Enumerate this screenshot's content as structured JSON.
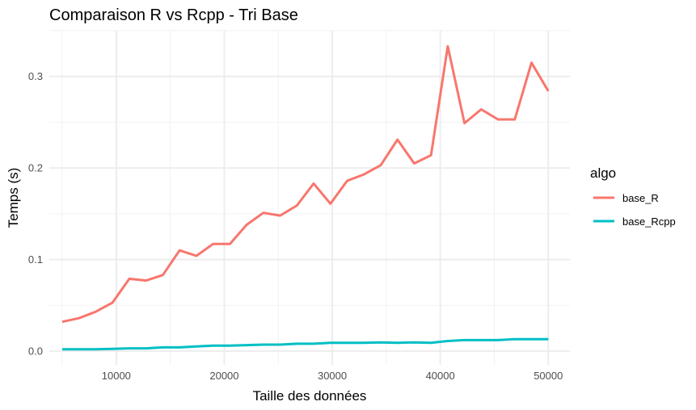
{
  "chart_data": {
    "type": "line",
    "title": "Comparaison R vs Rcpp - Tri Base",
    "xlabel": "Taille des données",
    "ylabel": "Temps (s)",
    "xlim": [
      3800,
      52000
    ],
    "ylim": [
      -0.015,
      0.35
    ],
    "xticks": [
      10000,
      20000,
      30000,
      40000,
      50000
    ],
    "xtick_labels": [
      "10000",
      "20000",
      "30000",
      "40000",
      "50000"
    ],
    "yticks": [
      0.0,
      0.1,
      0.2,
      0.3
    ],
    "ytick_labels": [
      "0.0",
      "0.1",
      "0.2",
      "0.3"
    ],
    "grid": true,
    "legend": {
      "title": "algo",
      "placement": "right"
    },
    "x": [
      5000,
      6552,
      8103,
      9655,
      11207,
      12759,
      14310,
      15862,
      17414,
      18966,
      20517,
      22069,
      23621,
      25172,
      26724,
      28276,
      29828,
      31379,
      32931,
      34483,
      36034,
      37586,
      39138,
      40690,
      42241,
      43793,
      45345,
      46897,
      48448,
      50000
    ],
    "series": [
      {
        "name": "base_R",
        "color": "#F8766D",
        "values": [
          0.032,
          0.036,
          0.043,
          0.053,
          0.079,
          0.077,
          0.083,
          0.11,
          0.104,
          0.117,
          0.117,
          0.138,
          0.151,
          0.148,
          0.159,
          0.183,
          0.161,
          0.186,
          0.193,
          0.203,
          0.231,
          0.205,
          0.214,
          0.333,
          0.249,
          0.264,
          0.253,
          0.253,
          0.315,
          0.284
        ]
      },
      {
        "name": "base_Rcpp",
        "color": "#00BFC4",
        "values": [
          0.002,
          0.002,
          0.002,
          0.0025,
          0.003,
          0.003,
          0.004,
          0.004,
          0.005,
          0.006,
          0.006,
          0.0065,
          0.007,
          0.007,
          0.008,
          0.008,
          0.009,
          0.009,
          0.009,
          0.0095,
          0.009,
          0.0095,
          0.009,
          0.011,
          0.012,
          0.012,
          0.012,
          0.013,
          0.013,
          0.013
        ]
      }
    ]
  }
}
